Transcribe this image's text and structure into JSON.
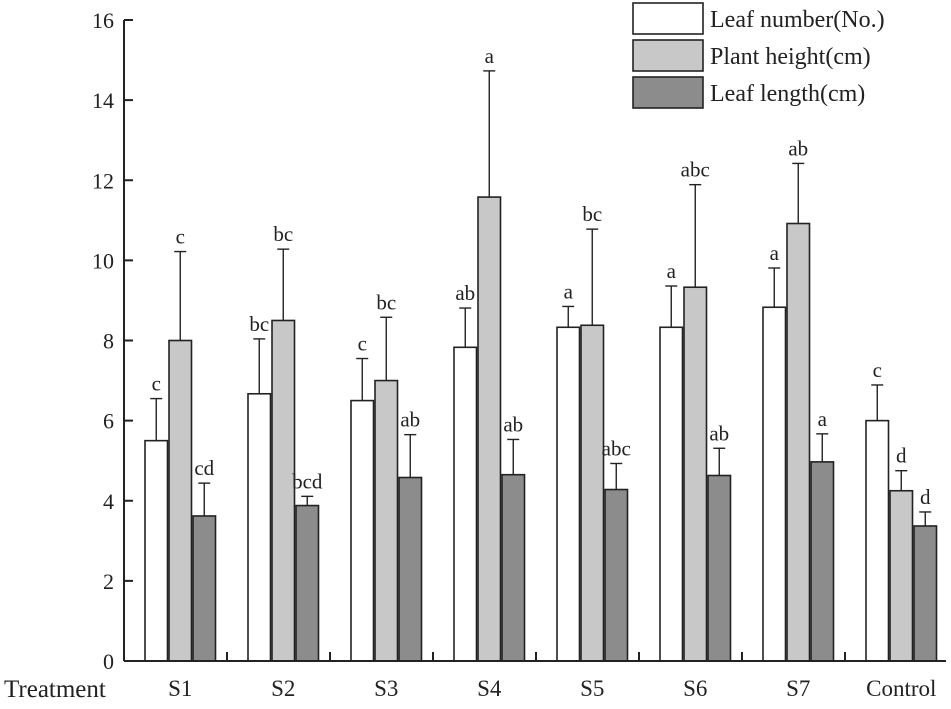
{
  "chart_data": {
    "type": "bar",
    "title": "",
    "xlabel": "Treatment",
    "ylabel": "",
    "ylim": [
      0,
      16
    ],
    "yticks": [
      0,
      2,
      4,
      6,
      8,
      10,
      12,
      14,
      16
    ],
    "categories": [
      "S1",
      "S2",
      "S3",
      "S4",
      "S5",
      "S6",
      "S7",
      "Control"
    ],
    "series": [
      {
        "name": "Leaf number(No.)",
        "color": "#ffffff",
        "values": [
          5.5,
          6.67,
          6.5,
          7.83,
          8.33,
          8.33,
          8.83,
          6.0
        ],
        "errors": [
          1.05,
          1.37,
          1.05,
          0.98,
          0.52,
          1.03,
          0.98,
          0.89
        ],
        "letters": [
          "c",
          "bc",
          "c",
          "ab",
          "a",
          "a",
          "a",
          "c"
        ]
      },
      {
        "name": "Plant height(cm)",
        "color": "#c8c8c8",
        "values": [
          8.0,
          8.5,
          7.0,
          11.58,
          8.38,
          9.33,
          10.92,
          4.25
        ],
        "errors": [
          2.22,
          1.78,
          1.58,
          3.15,
          2.4,
          2.56,
          1.5,
          0.5
        ],
        "letters": [
          "c",
          "bc",
          "bc",
          "a",
          "bc",
          "abc",
          "ab",
          "d"
        ]
      },
      {
        "name": "Leaf length(cm)",
        "color": "#8c8c8c",
        "values": [
          3.62,
          3.88,
          4.58,
          4.65,
          4.28,
          4.63,
          4.97,
          3.37
        ],
        "errors": [
          0.82,
          0.23,
          1.07,
          0.88,
          0.65,
          0.68,
          0.7,
          0.35
        ],
        "letters": [
          "cd",
          "bcd",
          "ab",
          "ab",
          "abc",
          "ab",
          "a",
          "d"
        ]
      }
    ],
    "legend_position": "top-right"
  }
}
